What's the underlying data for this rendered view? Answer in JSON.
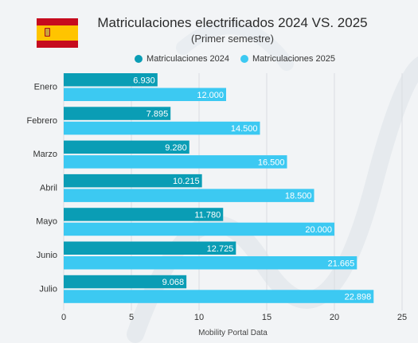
{
  "chart_data": {
    "type": "bar",
    "orientation": "horizontal",
    "title": "Matriculaciones electrificados 2024 VS. 2025",
    "subtitle": "(Primer semestre)",
    "categories": [
      "Enero",
      "Febrero",
      "Marzo",
      "Abril",
      "Mayo",
      "Junio",
      "Julio"
    ],
    "series": [
      {
        "name": "Matriculaciones 2024",
        "values": [
          6930,
          7895,
          9280,
          10215,
          11780,
          12725,
          9068
        ],
        "labels": [
          "6.930",
          "7.895",
          "9.280",
          "10.215",
          "11.780",
          "12.725",
          "9.068"
        ],
        "color": "#0a9db5"
      },
      {
        "name": "Matriculaciones 2025",
        "values": [
          12000,
          14500,
          16500,
          18500,
          20000,
          21665,
          22898
        ],
        "labels": [
          "12.000",
          "14.500",
          "16.500",
          "18.500",
          "20.000",
          "21.665",
          "22.898"
        ],
        "color": "#3cc9f2"
      }
    ],
    "x_ticks": [
      "0",
      "5",
      "10",
      "15",
      "20",
      "25"
    ],
    "x_unit_per_tick": 5000,
    "xlim": [
      0,
      25000
    ],
    "xlabel": "Mobility Portal Data",
    "ylabel": "",
    "grid": true,
    "legend_position": "top"
  },
  "flag": {
    "name": "spain-flag",
    "colors": [
      "#c60b1e",
      "#ffc400",
      "#c60b1e"
    ]
  }
}
